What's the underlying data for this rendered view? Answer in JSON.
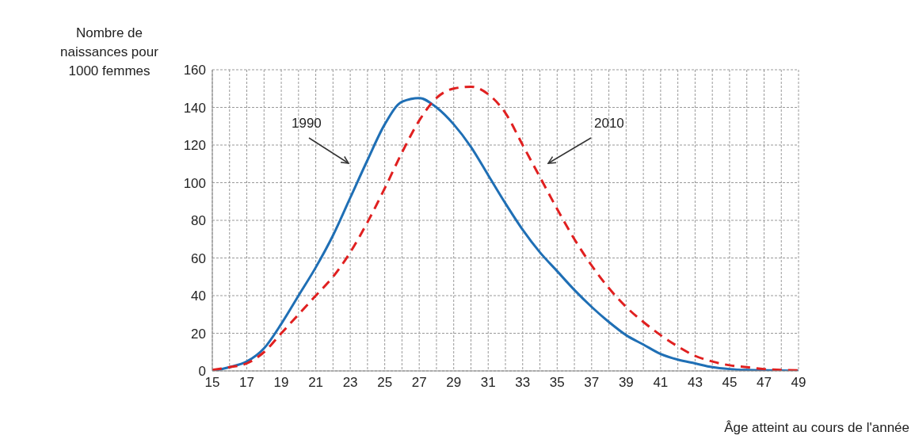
{
  "chart_data": {
    "type": "line",
    "xlabel": "Âge atteint au cours de l'année",
    "ylabel": "Nombre de naissances pour 1000 femmes",
    "categories": [
      "15",
      null,
      "17",
      null,
      "19",
      null,
      "21",
      null,
      "23",
      null,
      "25",
      null,
      "27",
      null,
      "29",
      null,
      "31",
      null,
      "33",
      null,
      "35",
      null,
      "37",
      null,
      "39",
      null,
      "41",
      null,
      "43",
      null,
      "45",
      null,
      "47",
      null,
      "49"
    ],
    "series": [
      {
        "color": "#1f6fb5",
        "line_style": "solid",
        "values": [
          0,
          2,
          5,
          12,
          25,
          40,
          55,
          72,
          92,
          112,
          131,
          143,
          145,
          140,
          131,
          119,
          104,
          89,
          75,
          63,
          53,
          43,
          34,
          26,
          19,
          14,
          9,
          6,
          4,
          2,
          1,
          0.5,
          0.3,
          0.2,
          0
        ]
      },
      {
        "color": "#e02020",
        "line_style": "dashed",
        "values": [
          0.5,
          2,
          4,
          10,
          20,
          30,
          40,
          50,
          63,
          79,
          97,
          116,
          133,
          145,
          150,
          151,
          147,
          137,
          120,
          103,
          86,
          70,
          56,
          44,
          34,
          26,
          19,
          13,
          8,
          5,
          3,
          2,
          1,
          0.5,
          0.3
        ]
      }
    ],
    "annotations": [
      "1990",
      "2010"
    ],
    "ylim": [
      0,
      160
    ],
    "yticks": [
      0,
      20,
      40,
      60,
      80,
      100,
      120,
      140,
      160
    ],
    "grid": true,
    "marker": "none"
  }
}
